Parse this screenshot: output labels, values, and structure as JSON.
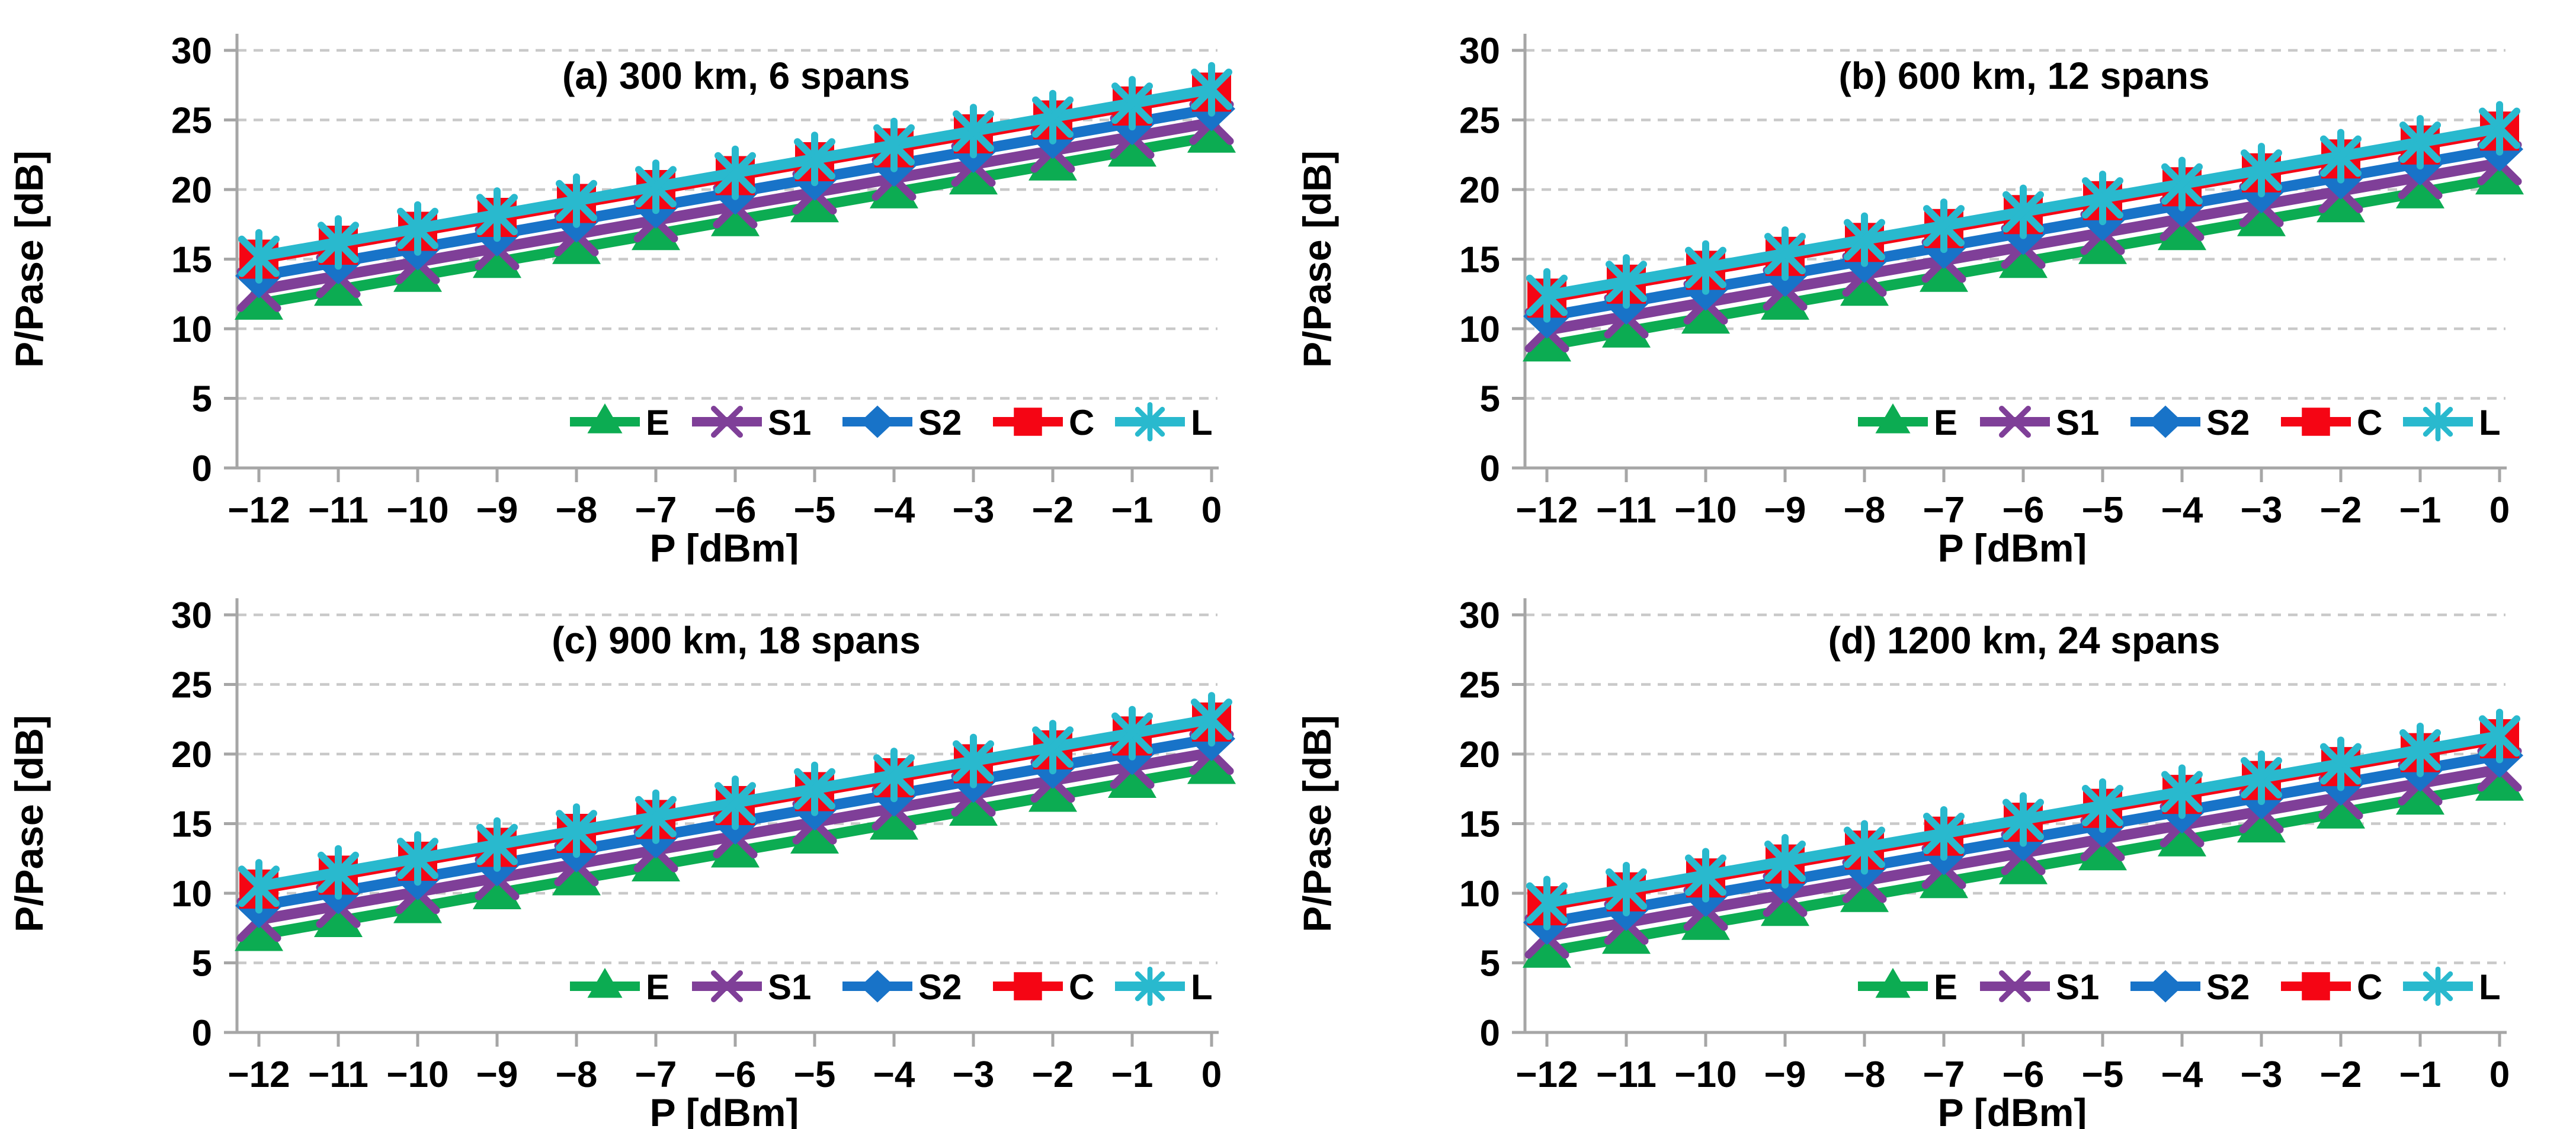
{
  "page": {
    "background": "#ffffff",
    "figure_type": "2x2 line chart grid"
  },
  "axes_common": {
    "xlabel": "P [dBm]",
    "ylabel": "P/Pase [dB]",
    "x_tick_labels": [
      "−12",
      "−11",
      "−10",
      "−9",
      "−8",
      "−7",
      "−6",
      "−5",
      "−4",
      "−3",
      "−2",
      "−1",
      "0"
    ],
    "y_tick_labels": [
      "0",
      "5",
      "10",
      "15",
      "20",
      "25",
      "30"
    ],
    "grid": "dashed horizontal gridlines",
    "legend_position": "inside bottom-right",
    "axis_color": "#a6a6a6",
    "gridline_color": "#c9c9c9"
  },
  "chart_data": [
    {
      "id": "a",
      "title": "(a) 300 km, 6 spans",
      "type": "line",
      "xlabel": "P [dBm]",
      "ylabel": "P/Pase [dB]",
      "x": [
        -12,
        -11,
        -10,
        -9,
        -8,
        -7,
        -6,
        -5,
        -4,
        -3,
        -2,
        -1,
        0
      ],
      "ylim": [
        0,
        30
      ],
      "yticks": [
        0,
        5,
        10,
        15,
        20,
        25,
        30
      ],
      "series": [
        {
          "name": "E",
          "color": "#0cac52",
          "marker": "triangle",
          "values": [
            11.8,
            12.8,
            13.8,
            14.8,
            15.8,
            16.8,
            17.8,
            18.8,
            19.8,
            20.8,
            21.8,
            22.8,
            23.8
          ]
        },
        {
          "name": "S1",
          "color": "#7f3f98",
          "marker": "xcross",
          "values": [
            12.8,
            13.8,
            14.8,
            15.8,
            16.8,
            17.8,
            18.8,
            19.8,
            20.8,
            21.8,
            22.8,
            23.8,
            24.8
          ]
        },
        {
          "name": "S2",
          "color": "#1873c8",
          "marker": "diamond",
          "values": [
            13.8,
            14.8,
            15.8,
            16.8,
            17.8,
            18.8,
            19.8,
            20.8,
            21.8,
            22.8,
            23.8,
            24.8,
            25.8
          ]
        },
        {
          "name": "C",
          "color": "#f50514",
          "marker": "square",
          "values": [
            15.0,
            16.0,
            17.0,
            18.0,
            19.0,
            20.0,
            21.0,
            22.0,
            23.0,
            24.0,
            25.0,
            26.0,
            27.0
          ]
        },
        {
          "name": "L",
          "color": "#29b9ce",
          "marker": "asterisk",
          "values": [
            15.2,
            16.2,
            17.2,
            18.2,
            19.2,
            20.2,
            21.2,
            22.2,
            23.2,
            24.2,
            25.2,
            26.2,
            27.2
          ]
        }
      ]
    },
    {
      "id": "b",
      "title": "(b) 600 km, 12 spans",
      "type": "line",
      "xlabel": "P [dBm]",
      "ylabel": "P/Pase [dB]",
      "x": [
        -12,
        -11,
        -10,
        -9,
        -8,
        -7,
        -6,
        -5,
        -4,
        -3,
        -2,
        -1,
        0
      ],
      "ylim": [
        0,
        30
      ],
      "yticks": [
        0,
        5,
        10,
        15,
        20,
        25,
        30
      ],
      "series": [
        {
          "name": "E",
          "color": "#0cac52",
          "marker": "triangle",
          "values": [
            8.8,
            9.8,
            10.8,
            11.8,
            12.8,
            13.8,
            14.8,
            15.8,
            16.8,
            17.8,
            18.8,
            19.8,
            20.8
          ]
        },
        {
          "name": "S1",
          "color": "#7f3f98",
          "marker": "xcross",
          "values": [
            9.9,
            10.9,
            11.9,
            12.9,
            13.9,
            14.9,
            15.9,
            16.9,
            17.9,
            18.9,
            19.9,
            20.9,
            21.9
          ]
        },
        {
          "name": "S2",
          "color": "#1873c8",
          "marker": "diamond",
          "values": [
            10.9,
            11.9,
            12.9,
            13.9,
            14.9,
            15.9,
            16.9,
            17.9,
            18.9,
            19.9,
            20.9,
            21.9,
            22.9
          ]
        },
        {
          "name": "C",
          "color": "#f50514",
          "marker": "square",
          "values": [
            12.2,
            13.2,
            14.2,
            15.2,
            16.2,
            17.2,
            18.2,
            19.2,
            20.2,
            21.2,
            22.2,
            23.2,
            24.2
          ]
        },
        {
          "name": "L",
          "color": "#29b9ce",
          "marker": "asterisk",
          "values": [
            12.4,
            13.4,
            14.4,
            15.4,
            16.4,
            17.4,
            18.4,
            19.4,
            20.4,
            21.4,
            22.4,
            23.4,
            24.4
          ]
        }
      ]
    },
    {
      "id": "c",
      "title": "(c) 900 km, 18 spans",
      "type": "line",
      "xlabel": "P [dBm]",
      "ylabel": "P/Pase [dB]",
      "x": [
        -12,
        -11,
        -10,
        -9,
        -8,
        -7,
        -6,
        -5,
        -4,
        -3,
        -2,
        -1,
        0
      ],
      "ylim": [
        0,
        30
      ],
      "yticks": [
        0,
        5,
        10,
        15,
        20,
        25,
        30
      ],
      "series": [
        {
          "name": "E",
          "color": "#0cac52",
          "marker": "triangle",
          "values": [
            7.0,
            8.0,
            9.0,
            10.0,
            11.0,
            12.0,
            13.0,
            14.0,
            15.0,
            16.0,
            17.0,
            18.0,
            19.0
          ]
        },
        {
          "name": "S1",
          "color": "#7f3f98",
          "marker": "xcross",
          "values": [
            8.1,
            9.1,
            10.1,
            11.1,
            12.1,
            13.1,
            14.1,
            15.1,
            16.1,
            17.1,
            18.1,
            19.1,
            20.1
          ]
        },
        {
          "name": "S2",
          "color": "#1873c8",
          "marker": "diamond",
          "values": [
            9.1,
            10.1,
            11.1,
            12.1,
            13.1,
            14.1,
            15.1,
            16.1,
            17.1,
            18.1,
            19.1,
            20.1,
            21.1
          ]
        },
        {
          "name": "C",
          "color": "#f50514",
          "marker": "square",
          "values": [
            10.3,
            11.3,
            12.3,
            13.3,
            14.3,
            15.3,
            16.3,
            17.3,
            18.3,
            19.3,
            20.3,
            21.3,
            22.3
          ]
        },
        {
          "name": "L",
          "color": "#29b9ce",
          "marker": "asterisk",
          "values": [
            10.5,
            11.5,
            12.5,
            13.5,
            14.5,
            15.5,
            16.5,
            17.5,
            18.5,
            19.5,
            20.5,
            21.5,
            22.5
          ]
        }
      ]
    },
    {
      "id": "d",
      "title": "(d) 1200 km, 24 spans",
      "type": "line",
      "xlabel": "P [dBm]",
      "ylabel": "P/Pase [dB]",
      "x": [
        -12,
        -11,
        -10,
        -9,
        -8,
        -7,
        -6,
        -5,
        -4,
        -3,
        -2,
        -1,
        0
      ],
      "ylim": [
        0,
        30
      ],
      "yticks": [
        0,
        5,
        10,
        15,
        20,
        25,
        30
      ],
      "series": [
        {
          "name": "E",
          "color": "#0cac52",
          "marker": "triangle",
          "values": [
            5.8,
            6.8,
            7.8,
            8.8,
            9.8,
            10.8,
            11.8,
            12.8,
            13.8,
            14.8,
            15.8,
            16.8,
            17.8
          ]
        },
        {
          "name": "S1",
          "color": "#7f3f98",
          "marker": "xcross",
          "values": [
            6.9,
            7.9,
            8.9,
            9.9,
            10.9,
            11.9,
            12.9,
            13.9,
            14.9,
            15.9,
            16.9,
            17.9,
            18.9
          ]
        },
        {
          "name": "S2",
          "color": "#1873c8",
          "marker": "diamond",
          "values": [
            7.9,
            8.9,
            9.9,
            10.9,
            11.9,
            12.9,
            13.9,
            14.9,
            15.9,
            16.9,
            17.9,
            18.9,
            19.9
          ]
        },
        {
          "name": "C",
          "color": "#f50514",
          "marker": "square",
          "values": [
            9.1,
            10.1,
            11.1,
            12.1,
            13.1,
            14.1,
            15.1,
            16.1,
            17.1,
            18.1,
            19.1,
            20.1,
            21.1
          ]
        },
        {
          "name": "L",
          "color": "#29b9ce",
          "marker": "asterisk",
          "values": [
            9.3,
            10.3,
            11.3,
            12.3,
            13.3,
            14.3,
            15.3,
            16.3,
            17.3,
            18.3,
            19.3,
            20.3,
            21.3
          ]
        }
      ]
    }
  ]
}
